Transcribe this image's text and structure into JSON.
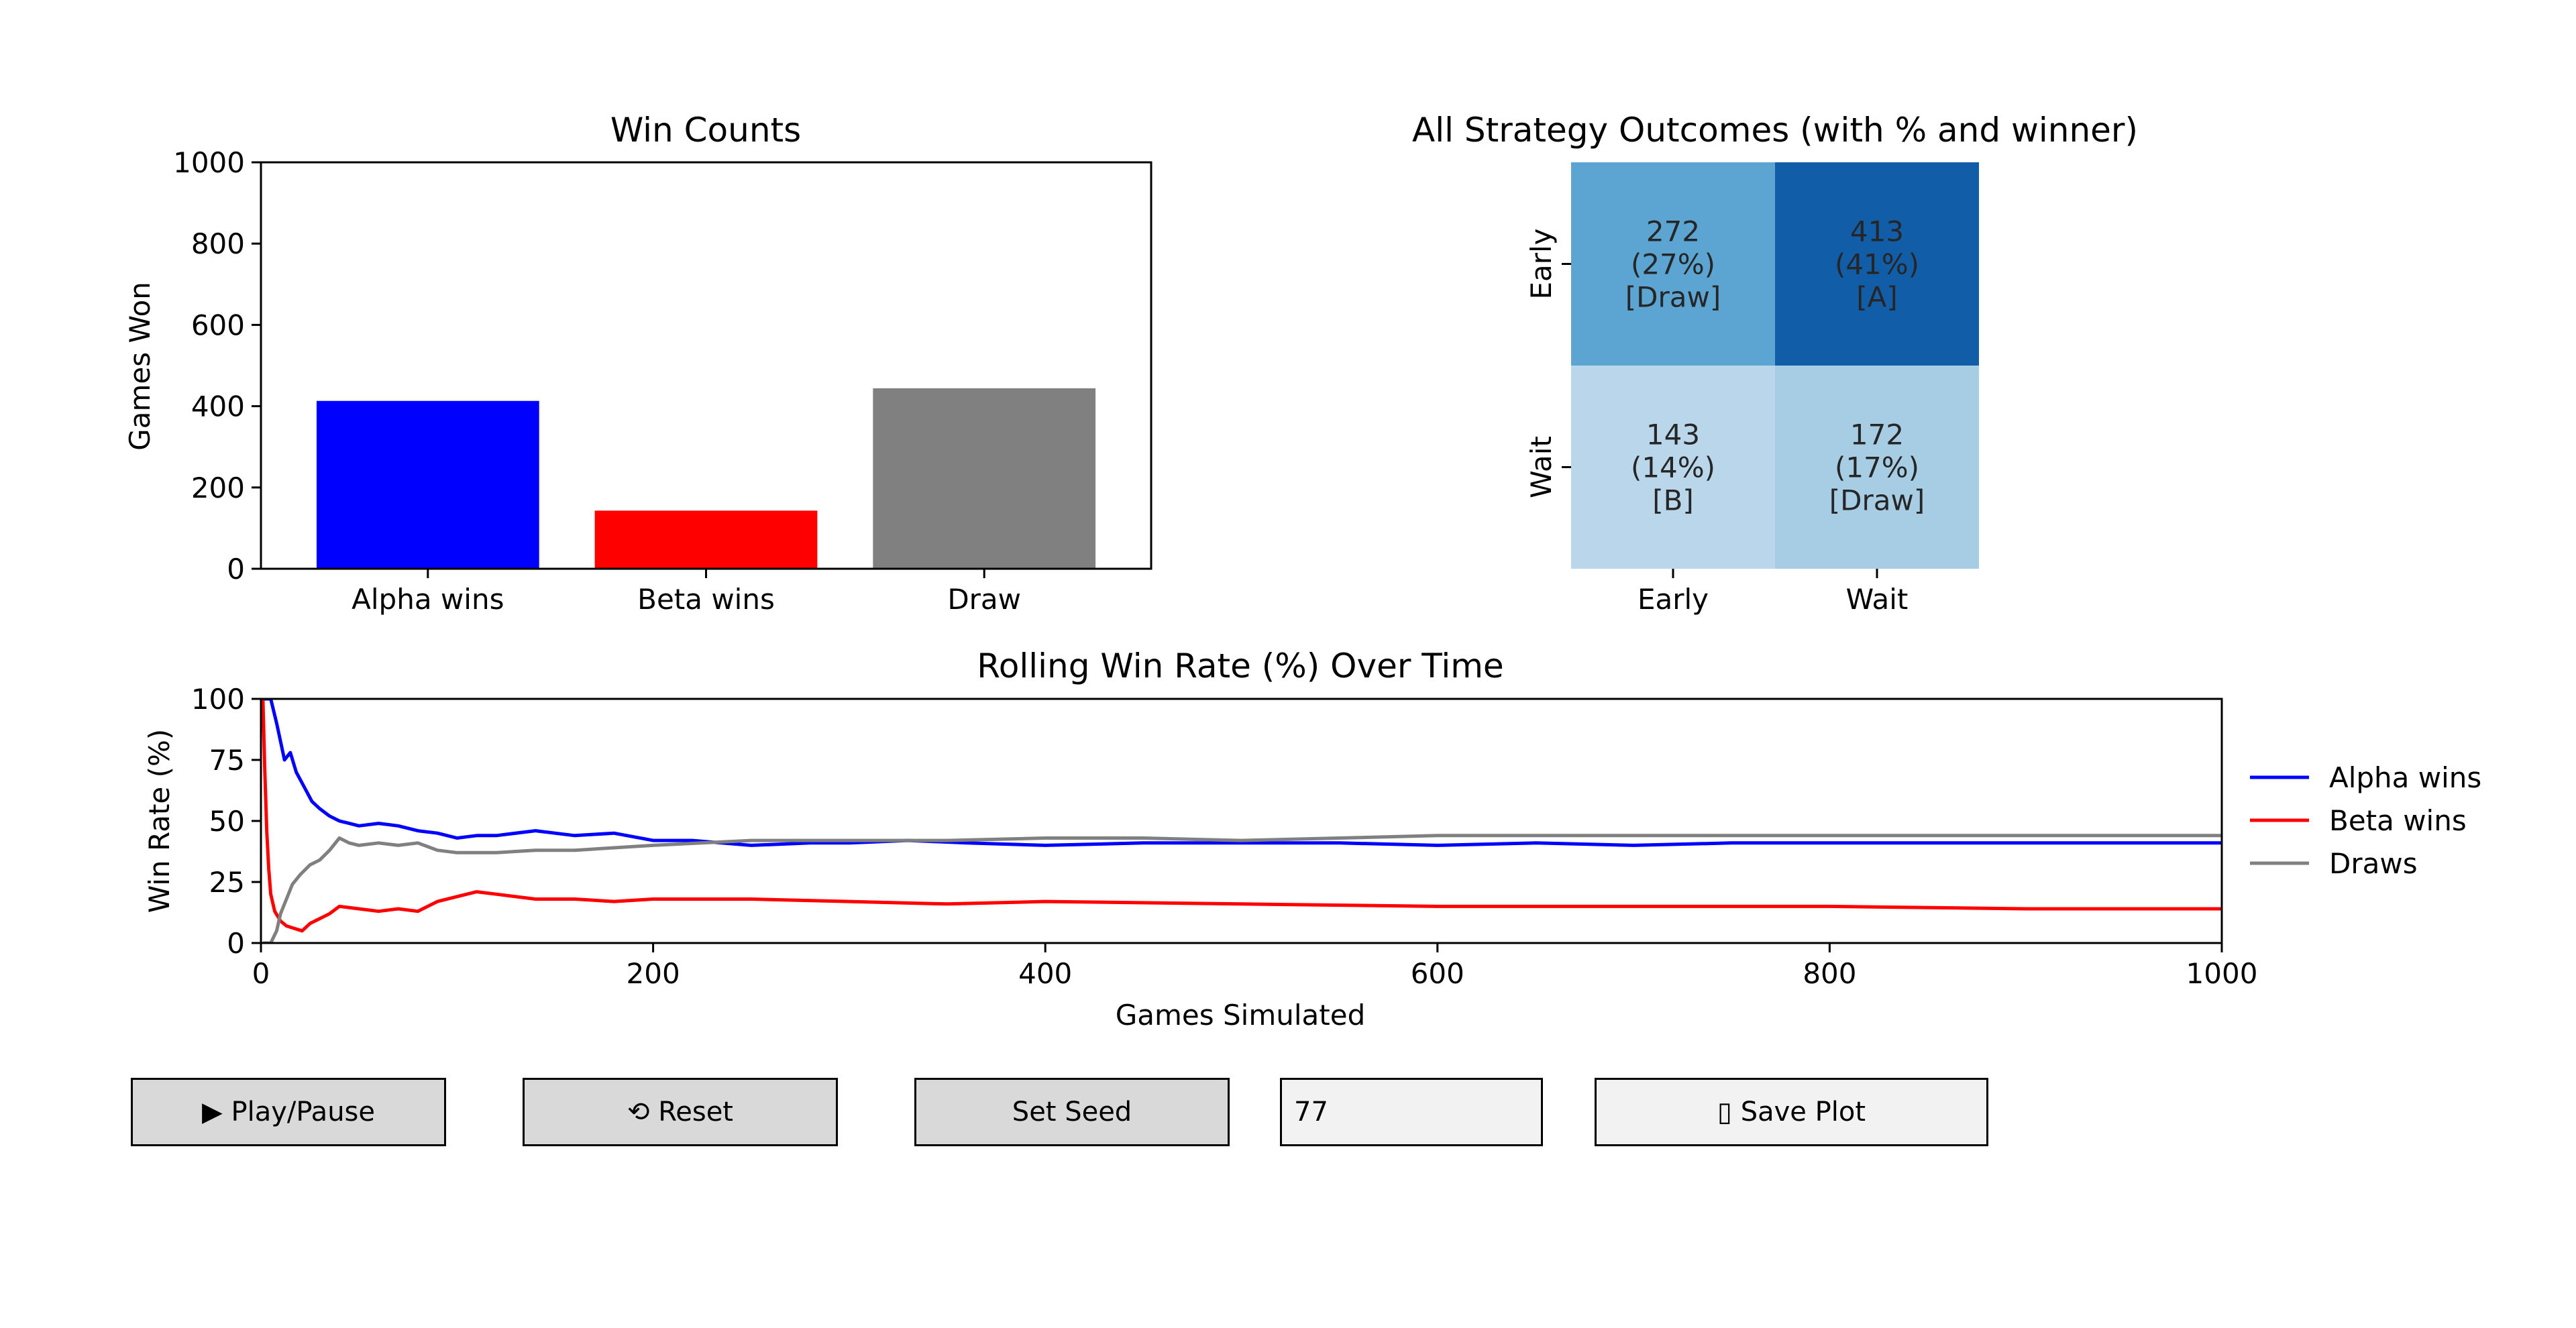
{
  "chart_data": [
    {
      "type": "bar",
      "title": "Win Counts",
      "xlabel": "",
      "ylabel": "Games Won",
      "categories": [
        "Alpha wins",
        "Beta wins",
        "Draw"
      ],
      "values": [
        413,
        143,
        444
      ],
      "colors": [
        "#0000ff",
        "#ff0000",
        "#808080"
      ],
      "ylim": [
        0,
        1000
      ],
      "yticks": [
        0,
        200,
        400,
        600,
        800,
        1000
      ]
    },
    {
      "type": "heatmap",
      "title": "All Strategy Outcomes (with % and winner)",
      "x_categories": [
        "Early",
        "Wait"
      ],
      "y_categories": [
        "Early",
        "Wait"
      ],
      "cells": [
        [
          {
            "count": "272",
            "pct": "(27%)",
            "winner": "[Draw]",
            "color": "#5ca4d1"
          },
          {
            "count": "413",
            "pct": "(41%)",
            "winner": "[A]",
            "color": "#125da8"
          }
        ],
        [
          {
            "count": "143",
            "pct": "(14%)",
            "winner": "[B]",
            "color": "#bad6eb"
          },
          {
            "count": "172",
            "pct": "(17%)",
            "winner": "[Draw]",
            "color": "#a7cde4"
          }
        ]
      ],
      "values": [
        [
          272,
          413
        ],
        [
          143,
          172
        ]
      ]
    },
    {
      "type": "line",
      "title": "Rolling Win Rate (%) Over Time",
      "xlabel": "Games Simulated",
      "ylabel": "Win Rate (%)",
      "xlim": [
        0,
        1000
      ],
      "ylim": [
        0,
        100
      ],
      "xticks": [
        0,
        200,
        400,
        600,
        800,
        1000
      ],
      "yticks": [
        0,
        25,
        50,
        75,
        100
      ],
      "legend": "right",
      "series": [
        {
          "name": "Alpha wins",
          "color": "#0000ff",
          "x": [
            1,
            5,
            8,
            12,
            15,
            18,
            22,
            26,
            30,
            35,
            40,
            45,
            50,
            60,
            70,
            80,
            90,
            100,
            110,
            120,
            140,
            160,
            180,
            200,
            220,
            250,
            280,
            300,
            330,
            360,
            400,
            450,
            500,
            550,
            600,
            650,
            700,
            750,
            800,
            850,
            900,
            950,
            1000
          ],
          "y": [
            100,
            100,
            90,
            75,
            78,
            70,
            64,
            58,
            55,
            52,
            50,
            49,
            48,
            49,
            48,
            46,
            45,
            43,
            44,
            44,
            46,
            44,
            45,
            42,
            42,
            40,
            41,
            41,
            42,
            41,
            40,
            41,
            41,
            41,
            40,
            41,
            40,
            41,
            41,
            41,
            41,
            41,
            41
          ]
        },
        {
          "name": "Beta wins",
          "color": "#ff0000",
          "x": [
            1,
            2,
            3,
            4,
            5,
            7,
            10,
            13,
            17,
            21,
            25,
            30,
            35,
            40,
            50,
            60,
            70,
            80,
            90,
            100,
            110,
            120,
            140,
            160,
            180,
            200,
            220,
            250,
            300,
            350,
            400,
            500,
            600,
            700,
            800,
            900,
            1000
          ],
          "y": [
            100,
            70,
            45,
            30,
            20,
            13,
            9,
            7,
            6,
            5,
            8,
            10,
            12,
            15,
            14,
            13,
            14,
            13,
            17,
            19,
            21,
            20,
            18,
            18,
            17,
            18,
            18,
            18,
            17,
            16,
            17,
            16,
            15,
            15,
            15,
            14,
            14
          ]
        },
        {
          "name": "Draws",
          "color": "#808080",
          "x": [
            1,
            5,
            8,
            10,
            13,
            16,
            20,
            25,
            30,
            35,
            40,
            45,
            50,
            60,
            70,
            80,
            90,
            100,
            120,
            140,
            160,
            180,
            200,
            250,
            300,
            350,
            400,
            450,
            500,
            550,
            600,
            650,
            700,
            750,
            800,
            850,
            900,
            950,
            1000
          ],
          "y": [
            0,
            0,
            5,
            12,
            18,
            24,
            28,
            32,
            34,
            38,
            43,
            41,
            40,
            41,
            40,
            41,
            38,
            37,
            37,
            38,
            38,
            39,
            40,
            42,
            42,
            42,
            43,
            43,
            42,
            43,
            44,
            44,
            44,
            44,
            44,
            44,
            44,
            44,
            44
          ]
        }
      ]
    }
  ],
  "controls": {
    "play_label": "▶ Play/Pause",
    "reset_label": "⟲ Reset",
    "seed_button_label": "Set Seed",
    "seed_value": "77",
    "save_label": "▯ Save Plot"
  }
}
